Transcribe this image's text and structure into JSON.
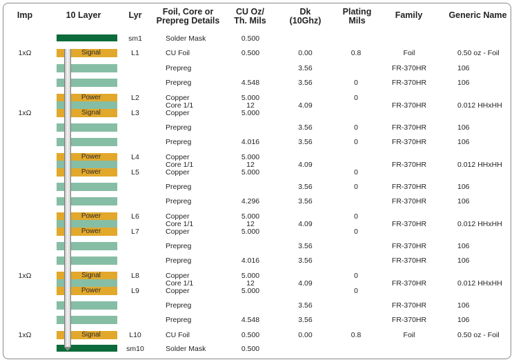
{
  "headers": {
    "imp": "Imp",
    "layers": "10 Layer",
    "lyr": "Lyr",
    "details_1": "Foil, Core or",
    "details_2": "Prepreg Details",
    "cu_1": "CU Oz/",
    "cu_2": "Th. Mils",
    "dk_1": "Dk",
    "dk_2": "(10Ghz)",
    "plating_1": "Plating",
    "plating_2": "Mils",
    "family": "Family",
    "generic": "Generic Name"
  },
  "rows": [
    {
      "imp": "",
      "bar": "mask",
      "bar_label": "",
      "lyr": "sm1",
      "detail": "Solder Mask",
      "cu": "0.500",
      "dk": "",
      "plating": "",
      "family": "",
      "generic": ""
    },
    {
      "imp": "1xΩ",
      "bar": "cu",
      "bar_label": "Signal",
      "lyr": "L1",
      "detail": "CU Foil",
      "cu": "0.500",
      "dk": "0.00",
      "plating": "0.8",
      "family": "Foil",
      "generic": "0.50 oz - Foil"
    },
    {
      "imp": "",
      "bar": "pp",
      "bar_label": "",
      "lyr": "",
      "detail": "Prepreg",
      "cu": "",
      "dk": "3.56",
      "plating": "",
      "family": "FR-370HR",
      "generic": "106"
    },
    {
      "imp": "",
      "bar": "pp",
      "bar_label": "",
      "lyr": "",
      "detail": "Prepreg",
      "cu": "4.548",
      "dk": "3.56",
      "plating": "0",
      "family": "FR-370HR",
      "generic": "106"
    },
    {
      "imp": "",
      "bar": "cu",
      "bar_label": "Power",
      "lyr": "L2",
      "detail": "Copper",
      "cu": "5.000",
      "dk": "",
      "plating": "0",
      "family": "",
      "generic": ""
    },
    {
      "imp": "",
      "bar": "core",
      "bar_label": "",
      "lyr": "",
      "detail": "Core 1/1",
      "cu": "12",
      "dk": "4.09",
      "plating": "",
      "family": "FR-370HR",
      "generic": "0.012 HHxHH"
    },
    {
      "imp": "1xΩ",
      "bar": "cu",
      "bar_label": "Signal",
      "lyr": "L3",
      "detail": "Copper",
      "cu": "5.000",
      "dk": "",
      "plating": "",
      "family": "",
      "generic": ""
    },
    {
      "imp": "",
      "bar": "pp",
      "bar_label": "",
      "lyr": "",
      "detail": "Prepreg",
      "cu": "",
      "dk": "3.56",
      "plating": "0",
      "family": "FR-370HR",
      "generic": "106"
    },
    {
      "imp": "",
      "bar": "pp",
      "bar_label": "",
      "lyr": "",
      "detail": "Prepreg",
      "cu": "4.016",
      "dk": "3.56",
      "plating": "0",
      "family": "FR-370HR",
      "generic": "106"
    },
    {
      "imp": "",
      "bar": "cu",
      "bar_label": "Power",
      "lyr": "L4",
      "detail": "Copper",
      "cu": "5.000",
      "dk": "",
      "plating": "",
      "family": "",
      "generic": ""
    },
    {
      "imp": "",
      "bar": "core",
      "bar_label": "",
      "lyr": "",
      "detail": "Core 1/1",
      "cu": "12",
      "dk": "4.09",
      "plating": "",
      "family": "FR-370HR",
      "generic": "0.012 HHxHH"
    },
    {
      "imp": "",
      "bar": "cu",
      "bar_label": "Power",
      "lyr": "L5",
      "detail": "Copper",
      "cu": "5.000",
      "dk": "",
      "plating": "0",
      "family": "",
      "generic": ""
    },
    {
      "imp": "",
      "bar": "pp",
      "bar_label": "",
      "lyr": "",
      "detail": "Prepreg",
      "cu": "",
      "dk": "3.56",
      "plating": "0",
      "family": "FR-370HR",
      "generic": "106"
    },
    {
      "imp": "",
      "bar": "pp",
      "bar_label": "",
      "lyr": "",
      "detail": "Prepreg",
      "cu": "4.296",
      "dk": "3.56",
      "plating": "",
      "family": "FR-370HR",
      "generic": "106"
    },
    {
      "imp": "",
      "bar": "cu",
      "bar_label": "Power",
      "lyr": "L6",
      "detail": "Copper",
      "cu": "5.000",
      "dk": "",
      "plating": "0",
      "family": "",
      "generic": ""
    },
    {
      "imp": "",
      "bar": "core",
      "bar_label": "",
      "lyr": "",
      "detail": "Core 1/1",
      "cu": "12",
      "dk": "4.09",
      "plating": "",
      "family": "FR-370HR",
      "generic": "0.012 HHxHH"
    },
    {
      "imp": "",
      "bar": "cu",
      "bar_label": "Power",
      "lyr": "L7",
      "detail": "Copper",
      "cu": "5.000",
      "dk": "",
      "plating": "0",
      "family": "",
      "generic": ""
    },
    {
      "imp": "",
      "bar": "pp",
      "bar_label": "",
      "lyr": "",
      "detail": "Prepreg",
      "cu": "",
      "dk": "3.56",
      "plating": "",
      "family": "FR-370HR",
      "generic": "106"
    },
    {
      "imp": "",
      "bar": "pp",
      "bar_label": "",
      "lyr": "",
      "detail": "Prepreg",
      "cu": "4.016",
      "dk": "3.56",
      "plating": "",
      "family": "FR-370HR",
      "generic": "106"
    },
    {
      "imp": "1xΩ",
      "bar": "cu",
      "bar_label": "Signal",
      "lyr": "L8",
      "detail": "Copper",
      "cu": "5.000",
      "dk": "",
      "plating": "0",
      "family": "",
      "generic": ""
    },
    {
      "imp": "",
      "bar": "core",
      "bar_label": "",
      "lyr": "",
      "detail": "Core 1/1",
      "cu": "12",
      "dk": "4.09",
      "plating": "",
      "family": "FR-370HR",
      "generic": "0.012 HHxHH"
    },
    {
      "imp": "",
      "bar": "cu",
      "bar_label": "Power",
      "lyr": "L9",
      "detail": "Copper",
      "cu": "5.000",
      "dk": "",
      "plating": "0",
      "family": "",
      "generic": ""
    },
    {
      "imp": "",
      "bar": "pp",
      "bar_label": "",
      "lyr": "",
      "detail": "Prepreg",
      "cu": "",
      "dk": "3.56",
      "plating": "",
      "family": "FR-370HR",
      "generic": "106"
    },
    {
      "imp": "",
      "bar": "pp",
      "bar_label": "",
      "lyr": "",
      "detail": "Prepreg",
      "cu": "4.548",
      "dk": "3.56",
      "plating": "",
      "family": "FR-370HR",
      "generic": "106"
    },
    {
      "imp": "1xΩ",
      "bar": "cu",
      "bar_label": "Signal",
      "lyr": "L10",
      "detail": "CU Foil",
      "cu": "0.500",
      "dk": "0.00",
      "plating": "0.8",
      "family": "Foil",
      "generic": "0.50 oz - Foil"
    },
    {
      "imp": "",
      "bar": "mask",
      "bar_label": "",
      "lyr": "sm10",
      "detail": "Solder Mask",
      "cu": "0.500",
      "dk": "",
      "plating": "",
      "family": "",
      "generic": ""
    }
  ]
}
